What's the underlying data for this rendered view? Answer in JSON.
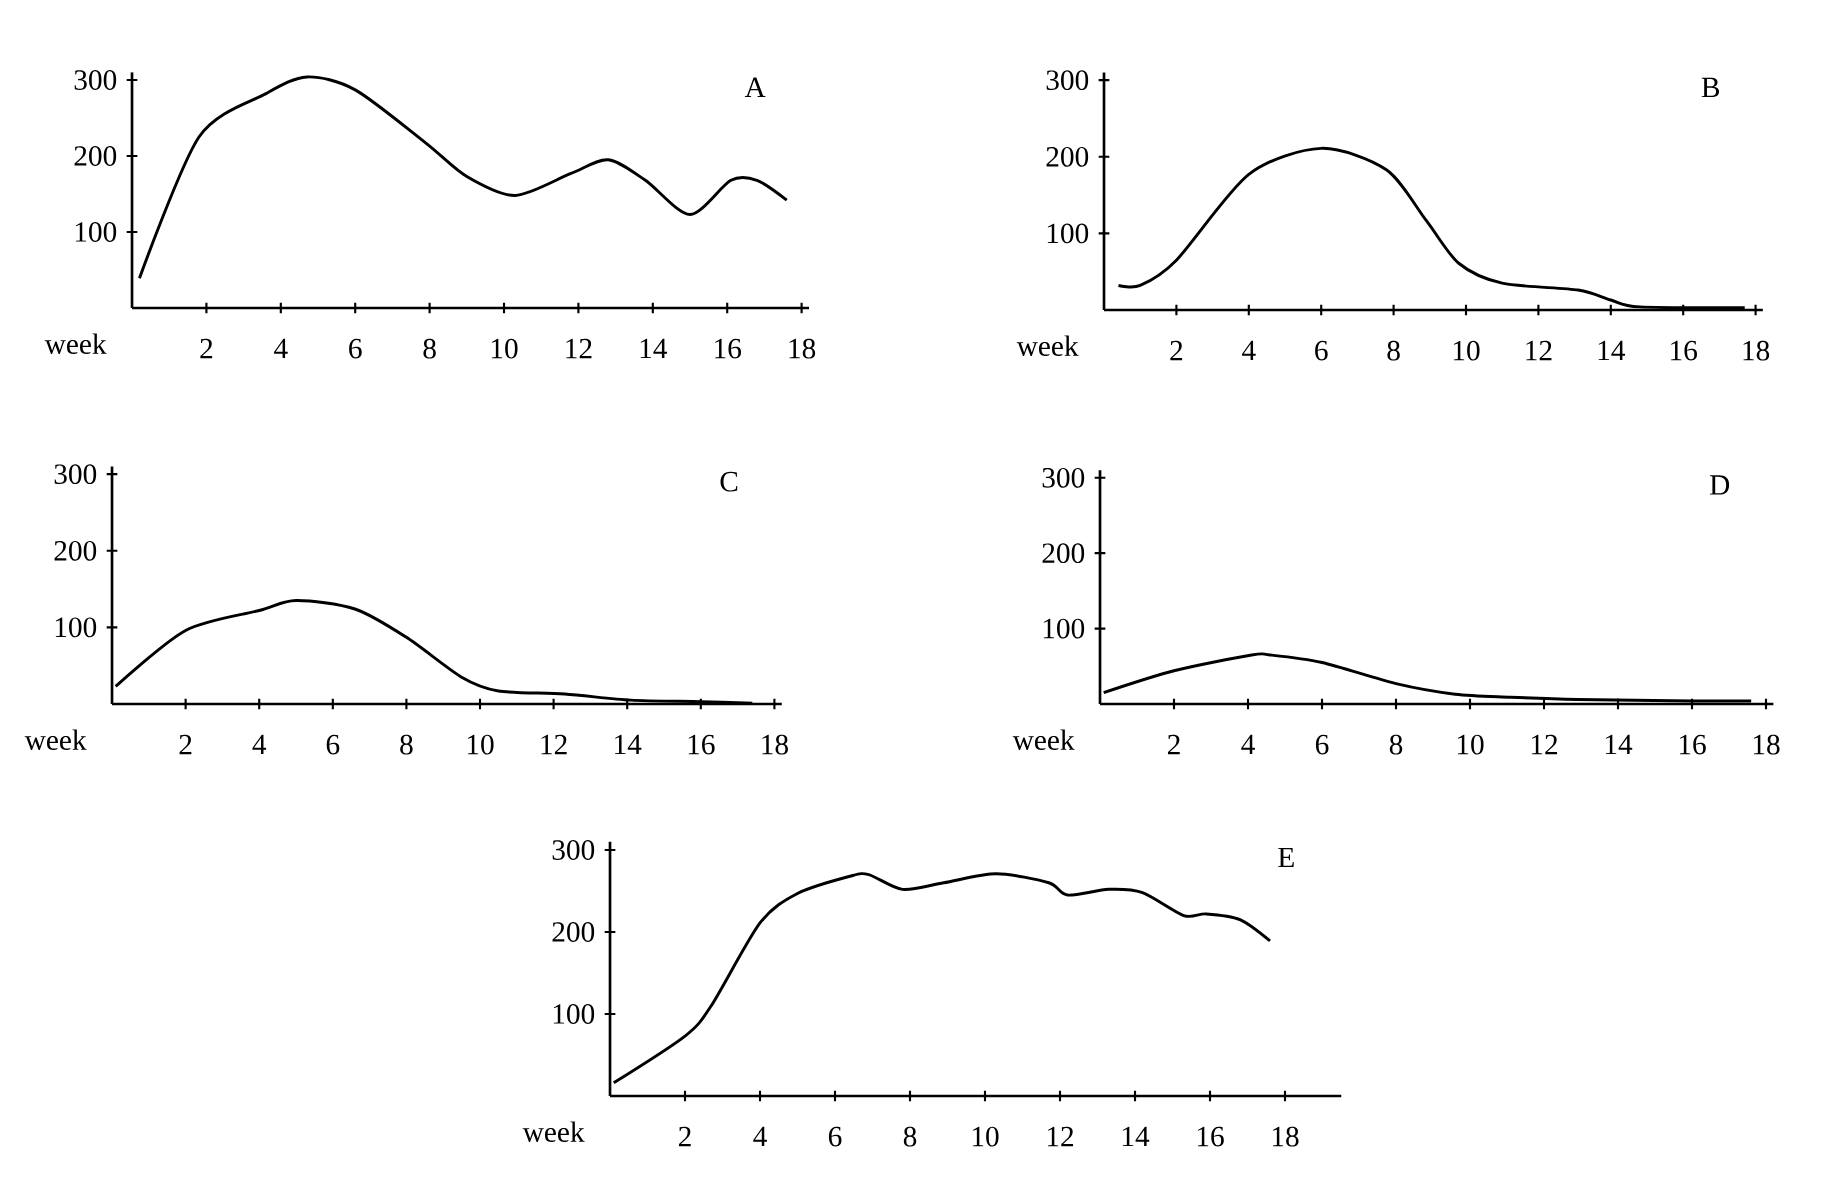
{
  "chart_data": [
    {
      "type": "line",
      "title": "A",
      "xlabel": "week",
      "color": "#000000",
      "xlim": [
        0,
        18.2
      ],
      "ylim": [
        0,
        310
      ],
      "xticks": [
        2,
        4,
        6,
        8,
        10,
        12,
        14,
        16,
        18
      ],
      "yticks": [
        100,
        200,
        300
      ],
      "x": [
        0.2,
        1.8,
        3.6,
        4.7,
        6,
        7.9,
        9,
        10.3,
        11.8,
        12.8,
        13.8,
        15,
        16.1,
        16.8,
        17.6
      ],
      "values": [
        39,
        225,
        282,
        304,
        287,
        217,
        173,
        148,
        177,
        195,
        168,
        123,
        168,
        168,
        142
      ]
    },
    {
      "type": "line",
      "title": "B",
      "xlabel": "week",
      "color": "#000000",
      "xlim": [
        0,
        18.2
      ],
      "ylim": [
        0,
        310
      ],
      "xticks": [
        2,
        4,
        6,
        8,
        10,
        12,
        14,
        16,
        18
      ],
      "yticks": [
        100,
        200,
        300
      ],
      "x": [
        0.4,
        1,
        2,
        4,
        6,
        7.8,
        8.9,
        9.8,
        11,
        13.1,
        14,
        14.8,
        17.7
      ],
      "values": [
        32,
        32,
        65,
        177,
        211,
        183,
        117,
        61,
        35,
        26,
        13,
        4,
        3
      ]
    },
    {
      "type": "line",
      "title": "C",
      "xlabel": "week",
      "color": "#000000",
      "xlim": [
        0,
        18.2
      ],
      "ylim": [
        0,
        310
      ],
      "xticks": [
        2,
        4,
        6,
        8,
        10,
        12,
        14,
        16,
        18
      ],
      "yticks": [
        100,
        200,
        300
      ],
      "x": [
        0.1,
        2,
        4,
        5,
        6.6,
        8,
        9.5,
        10.5,
        12.3,
        14.1,
        16,
        17.4
      ],
      "values": [
        23,
        96,
        122,
        135,
        124,
        87,
        35,
        17,
        13,
        5,
        3,
        1
      ]
    },
    {
      "type": "line",
      "title": "D",
      "xlabel": "week",
      "color": "#000000",
      "xlim": [
        0,
        18.2
      ],
      "ylim": [
        0,
        310
      ],
      "xticks": [
        2,
        4,
        6,
        8,
        10,
        12,
        14,
        16,
        18
      ],
      "yticks": [
        100,
        200,
        300
      ],
      "x": [
        0.1,
        2,
        4.1,
        4.6,
        6,
        8,
        9.6,
        11.1,
        12.9,
        16,
        17.6
      ],
      "values": [
        15,
        44,
        65,
        65,
        55,
        27,
        13,
        9,
        6,
        4,
        4
      ]
    },
    {
      "type": "line",
      "title": "E",
      "xlabel": "week",
      "color": "#000000",
      "xlim": [
        0,
        19.5
      ],
      "ylim": [
        0,
        310
      ],
      "xticks": [
        2,
        4,
        6,
        8,
        10,
        12,
        14,
        16,
        18
      ],
      "yticks": [
        100,
        200,
        300
      ],
      "x": [
        0.1,
        2,
        2.7,
        4,
        5,
        6.4,
        6.9,
        7.8,
        8.9,
        10.3,
        11.7,
        12.2,
        13.3,
        14.2,
        15.3,
        15.9,
        16.8,
        17.6
      ],
      "values": [
        16,
        73,
        110,
        211,
        247,
        268,
        270,
        252,
        260,
        271,
        260,
        245,
        252,
        248,
        220,
        222,
        215,
        189
      ]
    }
  ]
}
